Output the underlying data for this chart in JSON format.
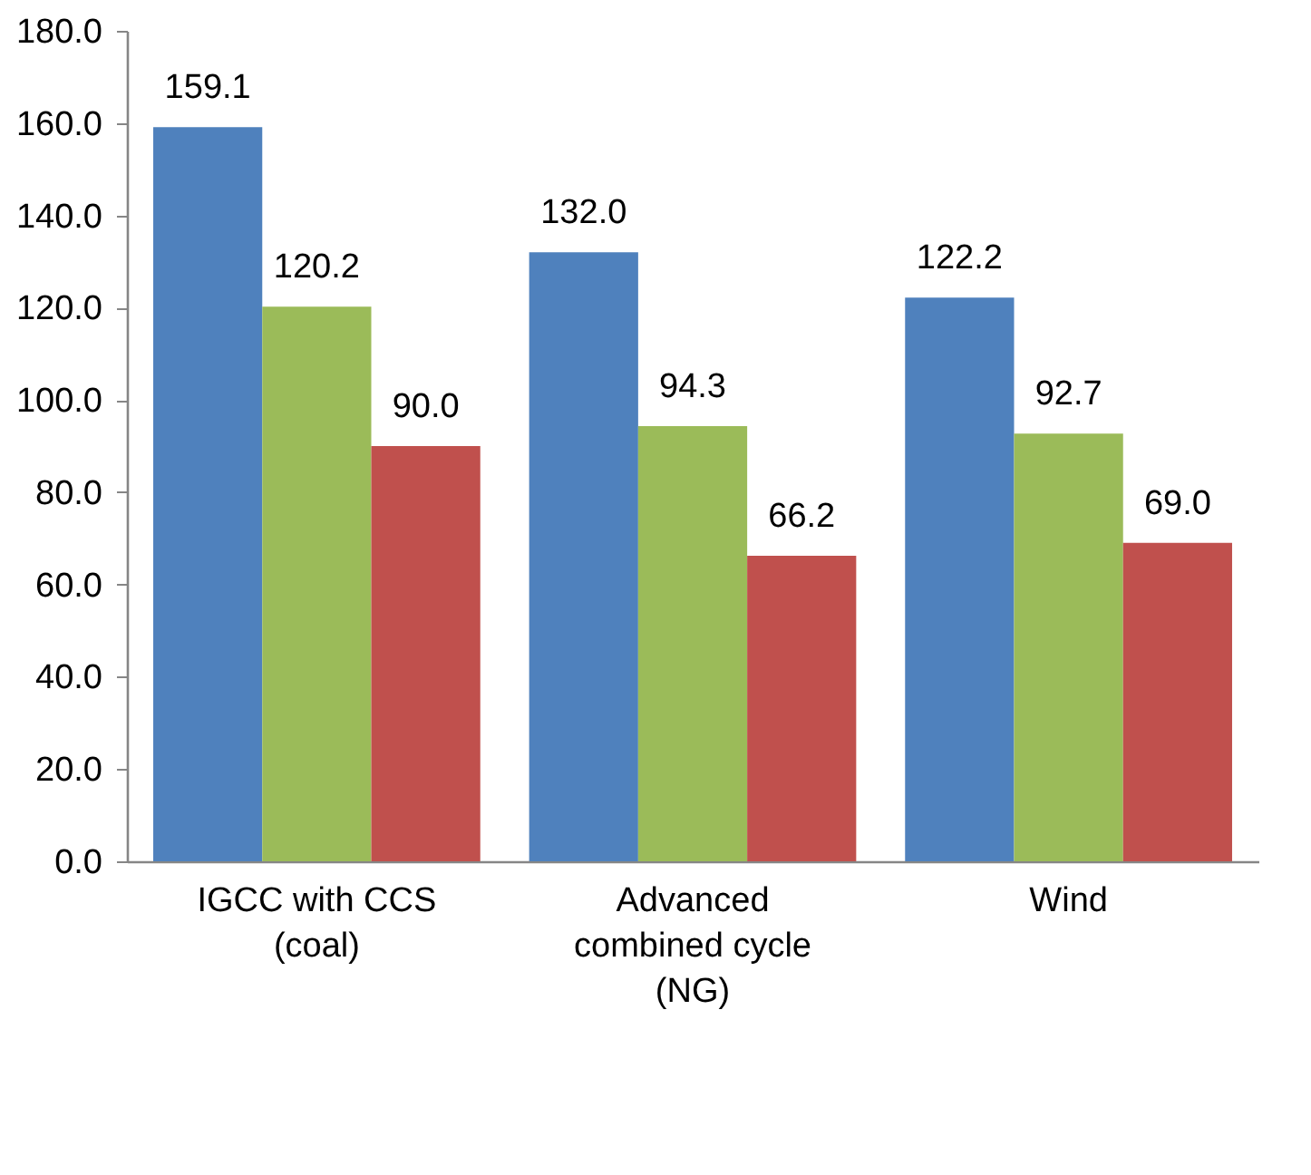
{
  "chart_data": {
    "type": "bar",
    "categories": [
      "IGCC with CCS (coal)",
      "Advanced combined cycle (NG)",
      "Wind"
    ],
    "series": [
      {
        "color": "#4f81bd",
        "values": [
          159.1,
          132.0,
          122.2
        ],
        "value_labels": [
          "159.1",
          "132.0",
          "122.2"
        ]
      },
      {
        "color": "#9bbb59",
        "values": [
          120.2,
          94.3,
          92.7
        ],
        "value_labels": [
          "120.2",
          "94.3",
          "92.7"
        ]
      },
      {
        "color": "#c0504d",
        "values": [
          90.0,
          66.2,
          69.0
        ],
        "value_labels": [
          "90.0",
          "66.2",
          "69.0"
        ]
      }
    ],
    "ylim": [
      0,
      180
    ],
    "yticks": [
      {
        "value": 0,
        "label": "0.0"
      },
      {
        "value": 20,
        "label": "20.0"
      },
      {
        "value": 40,
        "label": "40.0"
      },
      {
        "value": 60,
        "label": "60.0"
      },
      {
        "value": 80,
        "label": "80.0"
      },
      {
        "value": 100,
        "label": "100.0"
      },
      {
        "value": 120,
        "label": "120.0"
      },
      {
        "value": 140,
        "label": "140.0"
      },
      {
        "value": 160,
        "label": "160.0"
      },
      {
        "value": 180,
        "label": "180.0"
      }
    ],
    "grid": false,
    "legend": false
  }
}
